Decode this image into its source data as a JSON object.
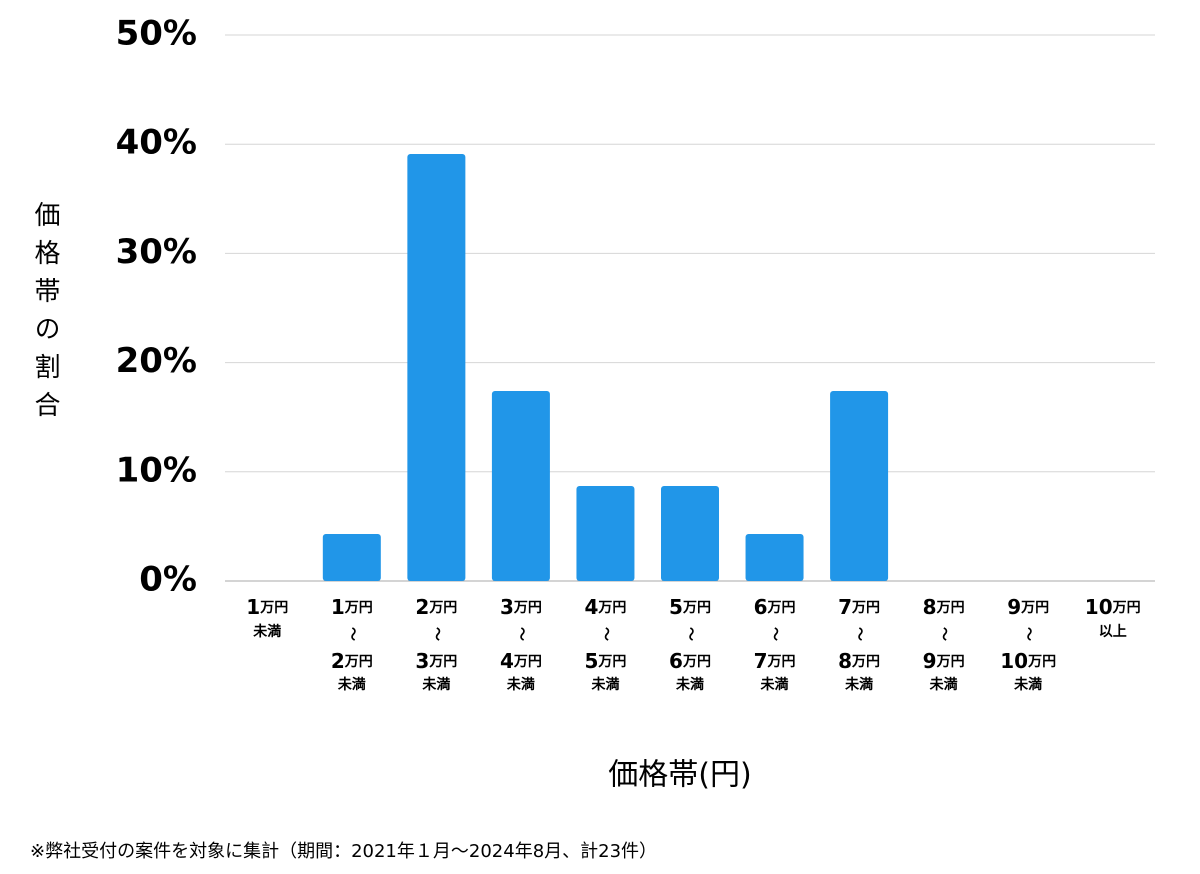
{
  "chart_data": {
    "type": "bar",
    "y_label": "価格帯の割合",
    "x_label": "価格帯(円)",
    "note": "※弊社受付の案件を対象に集計（期間：2021年１月〜2024年8月、計23件）",
    "categories": [
      [
        "1万円",
        "未満"
      ],
      [
        "1万円",
        "〜",
        "2万円",
        "未満"
      ],
      [
        "2万円",
        "〜",
        "3万円",
        "未満"
      ],
      [
        "3万円",
        "〜",
        "4万円",
        "未満"
      ],
      [
        "4万円",
        "〜",
        "5万円",
        "未満"
      ],
      [
        "5万円",
        "〜",
        "6万円",
        "未満"
      ],
      [
        "6万円",
        "〜",
        "7万円",
        "未満"
      ],
      [
        "7万円",
        "〜",
        "8万円",
        "未満"
      ],
      [
        "8万円",
        "〜",
        "9万円",
        "未満"
      ],
      [
        "9万円",
        "〜",
        "10万円",
        "未満"
      ],
      [
        "10万円",
        "以上"
      ]
    ],
    "values": [
      0,
      4.3,
      39.1,
      17.4,
      8.7,
      8.7,
      4.3,
      17.4,
      0,
      0,
      0
    ],
    "color": "#2196e8",
    "ylim": [
      0,
      50
    ],
    "yticks": [
      {
        "value": 0,
        "label": "0%"
      },
      {
        "value": 10,
        "label": "10%"
      },
      {
        "value": 20,
        "label": "20%"
      },
      {
        "value": 30,
        "label": "30%"
      },
      {
        "value": 40,
        "label": "40%"
      },
      {
        "value": 50,
        "label": "50%"
      }
    ],
    "grid": true
  }
}
